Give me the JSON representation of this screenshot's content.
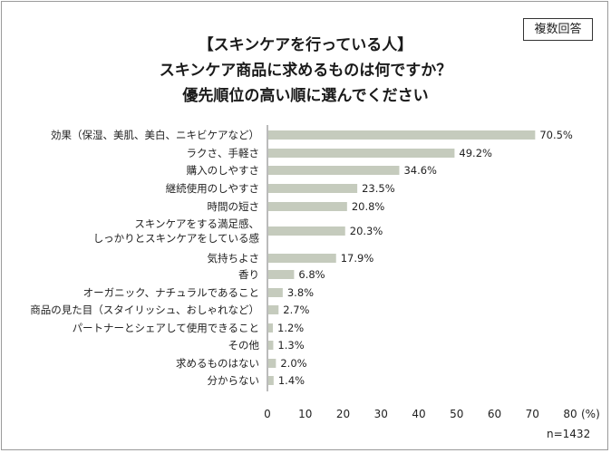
{
  "badge": "複数回答",
  "title_lines": [
    "【スキンケアを行っている人】",
    "スキンケア商品に求めるものは何ですか？",
    "優先順位の高い順に選んでください"
  ],
  "n_label": "n=1432",
  "chart_data": {
    "type": "bar",
    "orientation": "horizontal",
    "categories": [
      [
        "効果（保湿、美肌、美白、ニキビケアなど）"
      ],
      [
        "ラクさ、手軽さ"
      ],
      [
        "購入のしやすさ"
      ],
      [
        "継続使用のしやすさ"
      ],
      [
        "時間の短さ"
      ],
      [
        "スキンケアをする満足感、",
        "しっかりとスキンケアをしている感"
      ],
      [
        "気持ちよさ"
      ],
      [
        "香り"
      ],
      [
        "オーガニック、ナチュラルであること"
      ],
      [
        "商品の見た目（スタイリッシュ、おしゃれなど）"
      ],
      [
        "パートナーとシェアして使用できること"
      ],
      [
        "その他"
      ],
      [
        "求めるものはない"
      ],
      [
        "分からない"
      ]
    ],
    "values": [
      70.5,
      49.2,
      34.6,
      23.5,
      20.8,
      20.3,
      17.9,
      6.8,
      3.8,
      2.7,
      1.2,
      1.3,
      2.0,
      1.4
    ],
    "value_labels": [
      "70.5%",
      "49.2%",
      "34.6%",
      "23.5%",
      "20.8%",
      "20.3%",
      "17.9%",
      "6.8%",
      "3.8%",
      "2.7%",
      "1.2%",
      "1.3%",
      "2.0%",
      "1.4%"
    ],
    "xlim": [
      0,
      80
    ],
    "xticks": [
      "0",
      "10",
      "20",
      "30",
      "40",
      "50",
      "60",
      "70",
      "80"
    ],
    "xunit": "(%)",
    "bar_color": "#c5cbbd",
    "grid": false
  }
}
